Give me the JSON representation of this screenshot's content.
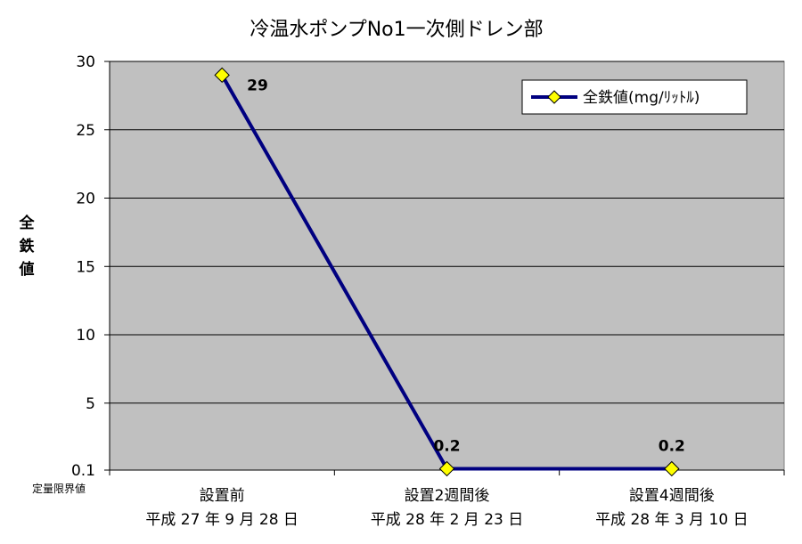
{
  "chart_data": {
    "type": "line",
    "title": "冷温水ポンプNo1一次側ドレン部",
    "ylabel": "全鉄値",
    "ylim": [
      0.1,
      30
    ],
    "y_ticks": [
      "0.1",
      "5",
      "10",
      "15",
      "20",
      "25",
      "30"
    ],
    "y_tick_values": [
      0.1,
      5,
      10,
      15,
      20,
      25,
      30
    ],
    "y_min_note": "定量限界値",
    "categories": [
      [
        "設置前",
        "平成 27 年 9 月 28 日"
      ],
      [
        "設置2週間後",
        "平成 28 年 2 月 23 日"
      ],
      [
        "設置4週間後",
        "平成 28 年 3 月 10 日"
      ]
    ],
    "series": [
      {
        "name": "全鉄値(mg/ﾘｯﾄﾙ)",
        "values": [
          29,
          0.2,
          0.2
        ],
        "data_labels": [
          "29",
          "0.2",
          "0.2"
        ]
      }
    ],
    "legend_position": "top-right",
    "grid": true,
    "colors": {
      "plot_bg": "#c0c0c0",
      "line": "#000080",
      "marker": "#ffff00"
    }
  }
}
